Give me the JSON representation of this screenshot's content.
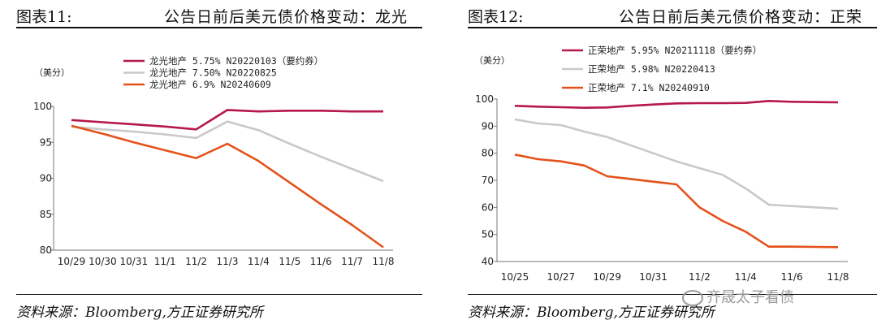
{
  "watermark": "齐晟太子看债",
  "source_line": "资料来源：Bloomberg,方正证券研究所",
  "chart_data": [
    {
      "type": "line",
      "figure_label": "图表11:",
      "title": "公告日前后美元债价格变动：龙光",
      "ylabel": "（美分）",
      "ylim": [
        80,
        100
      ],
      "yticks": [
        80,
        85,
        90,
        95,
        100
      ],
      "categories": [
        "10/29",
        "10/30",
        "10/31",
        "11/1",
        "11/2",
        "11/3",
        "11/4",
        "11/5",
        "11/6",
        "11/7",
        "11/8"
      ],
      "series": [
        {
          "name": "龙光地产 5.75% N20220103（要约券）",
          "color": "#b5174e",
          "values": [
            98.1,
            97.8,
            97.5,
            97.2,
            96.8,
            99.5,
            99.3,
            99.4,
            99.4,
            99.3,
            99.3
          ]
        },
        {
          "name": "龙光地产 7.50% N20220825",
          "color": "#c9c9c9",
          "values": [
            97.2,
            96.8,
            96.5,
            96.1,
            95.6,
            97.9,
            96.7,
            94.8,
            93.0,
            91.3,
            89.6
          ]
        },
        {
          "name": "龙光地产 6.9% N20240609",
          "color": "#e4521b",
          "values": [
            97.3,
            96.2,
            95.0,
            93.9,
            92.8,
            94.8,
            92.4,
            89.4,
            86.4,
            83.5,
            80.4
          ]
        }
      ]
    },
    {
      "type": "line",
      "figure_label": "图表12:",
      "title": "公告日前后美元债价格变动：正荣",
      "ylabel": "（美分）",
      "ylim": [
        40,
        100
      ],
      "yticks": [
        40,
        50,
        60,
        70,
        80,
        90,
        100
      ],
      "categories": [
        "10/25",
        "10/26",
        "10/27",
        "10/28",
        "10/29",
        "10/30",
        "10/31",
        "11/1",
        "11/2",
        "11/3",
        "11/4",
        "11/5",
        "11/6",
        "11/7",
        "11/8"
      ],
      "xtick_labels": [
        "10/25",
        "",
        "10/27",
        "",
        "10/29",
        "",
        "10/31",
        "",
        "11/2",
        "",
        "11/4",
        "",
        "11/6",
        "",
        "11/8"
      ],
      "series": [
        {
          "name": "正荣地产 5.95% N20211118（要约券）",
          "color": "#b5174e",
          "values": [
            97.5,
            97.2,
            97.0,
            96.8,
            96.9,
            97.5,
            98.0,
            98.4,
            98.5,
            98.5,
            98.6,
            99.3,
            99.0,
            98.9,
            98.8
          ]
        },
        {
          "name": "正荣地产 5.98% N20220413",
          "color": "#c9c9c9",
          "values": [
            92.5,
            91.0,
            90.4,
            88.0,
            86.0,
            83.0,
            80.0,
            77.0,
            74.5,
            72.0,
            67.0,
            61.0,
            60.5,
            60.0,
            59.5
          ]
        },
        {
          "name": "正荣地产 7.1% N20240910",
          "color": "#e4521b",
          "values": [
            79.5,
            77.8,
            77.0,
            75.5,
            71.5,
            70.5,
            69.5,
            68.5,
            60.0,
            55.0,
            51.0,
            45.5,
            45.5,
            45.4,
            45.3
          ]
        }
      ]
    }
  ]
}
